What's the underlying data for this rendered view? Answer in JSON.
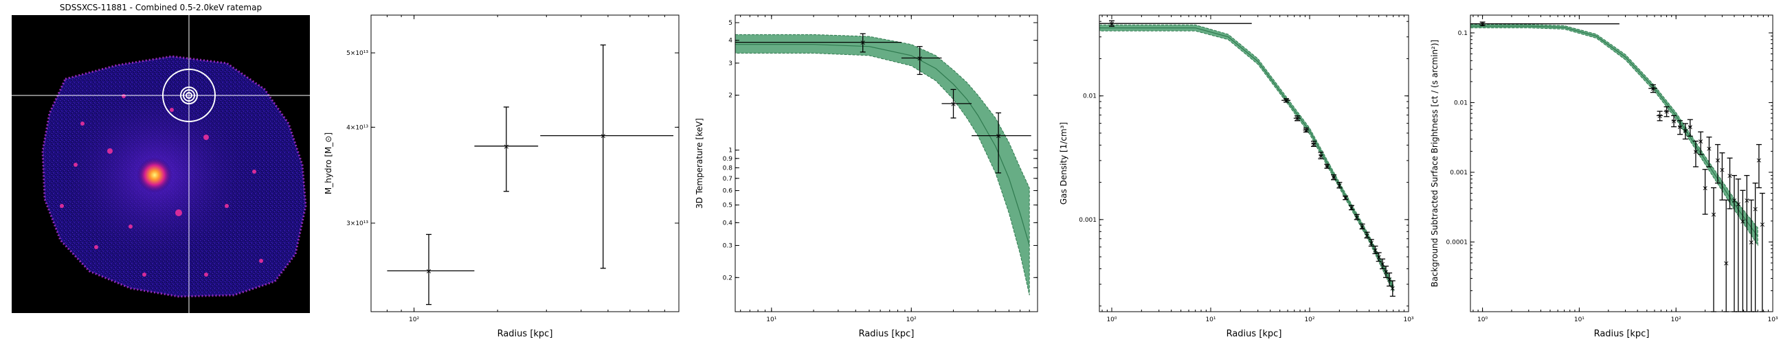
{
  "colors": {
    "band": "#4c9f70",
    "band_line": "#2f7a4f",
    "err": "#000000",
    "crosshair": "#ffffff"
  },
  "chart_data": [
    {
      "type": "image",
      "title": "SDSSXCS-11881 - Combined 0.5-2.0keV ratemap",
      "colormap": "gnuplot2",
      "crosshair": true,
      "aperture_rings": 4
    },
    {
      "type": "scatter",
      "xlabel": "Radius [kpc]",
      "ylabel": "M_hydro [M_⊙]",
      "xscale": "log",
      "yscale": "log",
      "xlim": [
        70,
        900
      ],
      "ylim": [
        23000000000000.0,
        56000000000000.0
      ],
      "x_ticks": [
        {
          "v": 100,
          "label": "10²"
        }
      ],
      "y_ticks": [
        {
          "v": 30000000000000.0,
          "label": "3×10¹³"
        },
        {
          "v": 40000000000000.0,
          "label": "4×10¹³"
        },
        {
          "v": 50000000000000.0,
          "label": "5×10¹³"
        }
      ],
      "points": [
        {
          "x": 113,
          "xlo": 80,
          "xhi": 165,
          "y": 26000000000000.0,
          "ylo": 23500000000000.0,
          "yhi": 29000000000000.0
        },
        {
          "x": 215,
          "xlo": 165,
          "xhi": 280,
          "y": 37800000000000.0,
          "ylo": 33000000000000.0,
          "yhi": 42500000000000.0
        },
        {
          "x": 480,
          "xlo": 285,
          "xhi": 860,
          "y": 39000000000000.0,
          "ylo": 26200000000000.0,
          "yhi": 51200000000000.0
        }
      ]
    },
    {
      "type": "line",
      "xlabel": "Radius [kpc]",
      "ylabel": "3D Temperature [keV]",
      "xscale": "log",
      "yscale": "log",
      "xlim": [
        5.5,
        800
      ],
      "ylim": [
        0.13,
        5.5
      ],
      "x_ticks": [
        {
          "v": 10,
          "label": "10¹"
        },
        {
          "v": 100,
          "label": "10²"
        }
      ],
      "y_ticks": [
        {
          "v": 0.2,
          "label": "0.2"
        },
        {
          "v": 0.3,
          "label": "0.3"
        },
        {
          "v": 0.4,
          "label": "0.4"
        },
        {
          "v": 0.5,
          "label": "0.5"
        },
        {
          "v": 0.6,
          "label": "0.6"
        },
        {
          "v": 0.7,
          "label": "0.7"
        },
        {
          "v": 0.8,
          "label": "0.8"
        },
        {
          "v": 0.9,
          "label": "0.9"
        },
        {
          "v": 1,
          "label": "1"
        },
        {
          "v": 2,
          "label": "2"
        },
        {
          "v": 3,
          "label": "3"
        },
        {
          "v": 4,
          "label": "4"
        },
        {
          "v": 5,
          "label": "5"
        }
      ],
      "model": {
        "x": [
          5.5,
          20,
          50,
          100,
          150,
          200,
          250,
          300,
          400,
          500,
          600,
          700
        ],
        "y": [
          3.8,
          3.8,
          3.7,
          3.3,
          2.8,
          2.3,
          1.9,
          1.55,
          1.05,
          0.7,
          0.45,
          0.3
        ],
        "lo": [
          3.4,
          3.4,
          3.3,
          2.9,
          2.4,
          1.9,
          1.5,
          1.2,
          0.75,
          0.45,
          0.27,
          0.16
        ],
        "hi": [
          4.3,
          4.3,
          4.2,
          3.8,
          3.3,
          2.75,
          2.35,
          2.0,
          1.5,
          1.1,
          0.8,
          0.62
        ]
      },
      "points": [
        {
          "x": 45,
          "xlo": 5.5,
          "xhi": 85,
          "y": 3.9,
          "ylo": 3.45,
          "yhi": 4.35
        },
        {
          "x": 115,
          "xlo": 85,
          "xhi": 165,
          "y": 3.2,
          "ylo": 2.6,
          "yhi": 3.7
        },
        {
          "x": 200,
          "xlo": 165,
          "xhi": 270,
          "y": 1.8,
          "ylo": 1.5,
          "yhi": 2.15
        },
        {
          "x": 420,
          "xlo": 270,
          "xhi": 720,
          "y": 1.2,
          "ylo": 0.75,
          "yhi": 1.6
        }
      ]
    },
    {
      "type": "line",
      "xlabel": "Radius [kpc]",
      "ylabel": "Gas Density [1/cm³]",
      "xscale": "log",
      "yscale": "log",
      "xlim": [
        0.75,
        1000
      ],
      "ylim": [
        0.00018,
        0.045
      ],
      "x_ticks": [
        {
          "v": 1,
          "label": "10⁰"
        },
        {
          "v": 10,
          "label": "10¹"
        },
        {
          "v": 100,
          "label": "10²"
        },
        {
          "v": 1000,
          "label": "10³"
        }
      ],
      "y_ticks": [
        {
          "v": 0.001,
          "label": "0.001"
        },
        {
          "v": 0.01,
          "label": "0.01"
        }
      ],
      "model": {
        "x": [
          0.75,
          3,
          7,
          15,
          30,
          60,
          100,
          200,
          400,
          700
        ],
        "y": [
          0.0355,
          0.0355,
          0.0355,
          0.03,
          0.019,
          0.009,
          0.0052,
          0.0019,
          0.0007,
          0.00028
        ],
        "lo": [
          0.0335,
          0.0335,
          0.0335,
          0.0285,
          0.018,
          0.0086,
          0.0049,
          0.0018,
          0.00066,
          0.00026
        ],
        "hi": [
          0.0375,
          0.0375,
          0.0375,
          0.0315,
          0.02,
          0.0095,
          0.0055,
          0.002,
          0.00074,
          0.0003
        ]
      },
      "points": [
        {
          "x": 1.0,
          "xlo": 0.75,
          "xhi": 26,
          "y": 0.0385,
          "ylo": 0.0365,
          "yhi": 0.0405
        },
        {
          "x": 58,
          "xlo": 52,
          "xhi": 64,
          "y": 0.0092,
          "ylo": 0.0089,
          "yhi": 0.0095
        },
        {
          "x": 75,
          "xlo": 69,
          "xhi": 81,
          "y": 0.0066,
          "ylo": 0.0063,
          "yhi": 0.0069
        },
        {
          "x": 92,
          "xlo": 86,
          "xhi": 98,
          "y": 0.0053,
          "ylo": 0.0051,
          "yhi": 0.0055
        },
        {
          "x": 110,
          "xlo": 104,
          "xhi": 116,
          "y": 0.0041,
          "ylo": 0.0039,
          "yhi": 0.0043
        },
        {
          "x": 130,
          "xlo": 124,
          "xhi": 136,
          "y": 0.0033,
          "ylo": 0.0031,
          "yhi": 0.0035
        },
        {
          "x": 150,
          "xlo": 144,
          "xhi": 156,
          "y": 0.0027,
          "ylo": 0.0026,
          "yhi": 0.0028
        },
        {
          "x": 175,
          "xlo": 169,
          "xhi": 181,
          "y": 0.0022,
          "ylo": 0.0021,
          "yhi": 0.0023
        },
        {
          "x": 200,
          "xlo": 194,
          "xhi": 206,
          "y": 0.0019,
          "ylo": 0.0018,
          "yhi": 0.002
        },
        {
          "x": 230,
          "xlo": 224,
          "xhi": 236,
          "y": 0.0015,
          "ylo": 0.00145,
          "yhi": 0.00155
        },
        {
          "x": 265,
          "xlo": 258,
          "xhi": 272,
          "y": 0.00125,
          "ylo": 0.0012,
          "yhi": 0.0013
        },
        {
          "x": 300,
          "xlo": 293,
          "xhi": 307,
          "y": 0.00105,
          "ylo": 0.001,
          "yhi": 0.0011
        },
        {
          "x": 340,
          "xlo": 332,
          "xhi": 348,
          "y": 0.00088,
          "ylo": 0.00084,
          "yhi": 0.00092
        },
        {
          "x": 380,
          "xlo": 372,
          "xhi": 388,
          "y": 0.00075,
          "ylo": 0.00071,
          "yhi": 0.00079
        },
        {
          "x": 420,
          "xlo": 412,
          "xhi": 428,
          "y": 0.00065,
          "ylo": 0.00061,
          "yhi": 0.00069
        },
        {
          "x": 460,
          "xlo": 452,
          "xhi": 468,
          "y": 0.00057,
          "ylo": 0.00053,
          "yhi": 0.00061
        },
        {
          "x": 500,
          "xlo": 492,
          "xhi": 508,
          "y": 0.0005,
          "ylo": 0.00046,
          "yhi": 0.00054
        },
        {
          "x": 545,
          "xlo": 537,
          "xhi": 553,
          "y": 0.00044,
          "ylo": 0.0004,
          "yhi": 0.00048
        },
        {
          "x": 590,
          "xlo": 582,
          "xhi": 598,
          "y": 0.00038,
          "ylo": 0.00034,
          "yhi": 0.00042
        },
        {
          "x": 640,
          "xlo": 632,
          "xhi": 648,
          "y": 0.00033,
          "ylo": 0.00029,
          "yhi": 0.00037
        },
        {
          "x": 690,
          "xlo": 682,
          "xhi": 698,
          "y": 0.00028,
          "ylo": 0.00024,
          "yhi": 0.00032
        }
      ]
    },
    {
      "type": "line",
      "xlabel": "Radius [kpc]",
      "ylabel": "Background Subtracted Surface Brightness [ct / (s arcmin²)]",
      "xscale": "log",
      "yscale": "log",
      "xlim": [
        0.75,
        1000
      ],
      "ylim": [
        1e-05,
        0.18
      ],
      "x_ticks": [
        {
          "v": 1,
          "label": "10⁰"
        },
        {
          "v": 10,
          "label": "10¹"
        },
        {
          "v": 100,
          "label": "10²"
        },
        {
          "v": 1000,
          "label": "10³"
        }
      ],
      "y_ticks": [
        {
          "v": 0.0001,
          "label": "0.0001"
        },
        {
          "v": 0.001,
          "label": "0.001"
        },
        {
          "v": 0.01,
          "label": "0.01"
        },
        {
          "v": 0.1,
          "label": "0.1"
        }
      ],
      "model": {
        "x": [
          0.75,
          3,
          7,
          15,
          30,
          60,
          100,
          200,
          400,
          700
        ],
        "y": [
          0.125,
          0.125,
          0.12,
          0.09,
          0.045,
          0.016,
          0.0065,
          0.0015,
          0.00035,
          0.00012
        ],
        "lo": [
          0.118,
          0.118,
          0.113,
          0.084,
          0.041,
          0.0145,
          0.0058,
          0.0013,
          0.00029,
          9e-05
        ],
        "hi": [
          0.132,
          0.132,
          0.127,
          0.096,
          0.049,
          0.0175,
          0.0072,
          0.0017,
          0.00042,
          0.00016
        ]
      },
      "points": [
        {
          "x": 1.0,
          "xlo": 0.75,
          "xhi": 26,
          "y": 0.135,
          "ylo": 0.127,
          "yhi": 0.143
        },
        {
          "x": 58,
          "xlo": 52,
          "xhi": 64,
          "y": 0.016,
          "ylo": 0.014,
          "yhi": 0.018
        },
        {
          "x": 68,
          "xlo": 63,
          "xhi": 73,
          "y": 0.0065,
          "ylo": 0.0055,
          "yhi": 0.0075
        },
        {
          "x": 80,
          "xlo": 75,
          "xhi": 85,
          "y": 0.0075,
          "ylo": 0.0063,
          "yhi": 0.0087
        },
        {
          "x": 95,
          "xlo": 90,
          "xhi": 100,
          "y": 0.0055,
          "ylo": 0.0045,
          "yhi": 0.0065
        },
        {
          "x": 110,
          "xlo": 105,
          "xhi": 115,
          "y": 0.0045,
          "ylo": 0.0035,
          "yhi": 0.0055
        },
        {
          "x": 125,
          "xlo": 120,
          "xhi": 130,
          "y": 0.004,
          "ylo": 0.003,
          "yhi": 0.005
        },
        {
          "x": 140,
          "xlo": 135,
          "xhi": 145,
          "y": 0.0045,
          "ylo": 0.0033,
          "yhi": 0.0057
        },
        {
          "x": 160,
          "xlo": 155,
          "xhi": 165,
          "y": 0.002,
          "ylo": 0.0012,
          "yhi": 0.0028
        },
        {
          "x": 180,
          "xlo": 175,
          "xhi": 185,
          "y": 0.0028,
          "ylo": 0.0018,
          "yhi": 0.0038
        },
        {
          "x": 200,
          "xlo": 195,
          "xhi": 205,
          "y": 0.0006,
          "ylo": 0.00025,
          "yhi": 0.0011
        },
        {
          "x": 220,
          "xlo": 215,
          "xhi": 225,
          "y": 0.0022,
          "ylo": 0.0012,
          "yhi": 0.0032
        },
        {
          "x": 245,
          "xlo": 240,
          "xhi": 250,
          "y": 0.00025,
          "ylo": 1e-05,
          "yhi": 0.0006
        },
        {
          "x": 270,
          "xlo": 265,
          "xhi": 275,
          "y": 0.0015,
          "ylo": 0.0007,
          "yhi": 0.0025
        },
        {
          "x": 300,
          "xlo": 295,
          "xhi": 305,
          "y": 0.0011,
          "ylo": 0.0004,
          "yhi": 0.0019
        },
        {
          "x": 330,
          "xlo": 325,
          "xhi": 335,
          "y": 5e-05,
          "ylo": 1e-05,
          "yhi": 0.0004
        },
        {
          "x": 360,
          "xlo": 355,
          "xhi": 365,
          "y": 0.0009,
          "ylo": 0.0003,
          "yhi": 0.0016
        },
        {
          "x": 400,
          "xlo": 395,
          "xhi": 405,
          "y": 0.0004,
          "ylo": 1e-05,
          "yhi": 0.0009
        },
        {
          "x": 440,
          "xlo": 435,
          "xhi": 445,
          "y": 0.00035,
          "ylo": 1e-05,
          "yhi": 0.0008
        },
        {
          "x": 490,
          "xlo": 485,
          "xhi": 495,
          "y": 0.0002,
          "ylo": 1e-05,
          "yhi": 0.00055
        },
        {
          "x": 540,
          "xlo": 535,
          "xhi": 545,
          "y": 0.0004,
          "ylo": 1e-05,
          "yhi": 0.0009
        },
        {
          "x": 600,
          "xlo": 595,
          "xhi": 605,
          "y": 0.0001,
          "ylo": 1e-05,
          "yhi": 0.0004
        },
        {
          "x": 660,
          "xlo": 655,
          "xhi": 665,
          "y": 0.0003,
          "ylo": 1e-05,
          "yhi": 0.0007
        },
        {
          "x": 720,
          "xlo": 715,
          "xhi": 725,
          "y": 0.0015,
          "ylo": 0.0006,
          "yhi": 0.0025
        },
        {
          "x": 780,
          "xlo": 775,
          "xhi": 785,
          "y": 0.00018,
          "ylo": 1e-05,
          "yhi": 0.0005
        }
      ]
    }
  ]
}
